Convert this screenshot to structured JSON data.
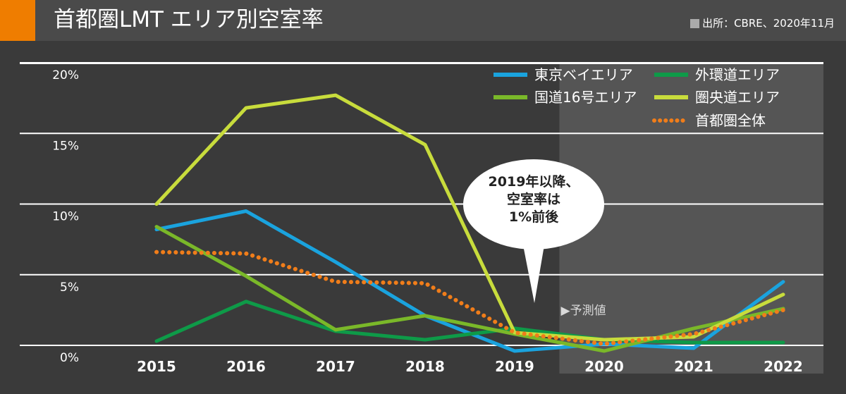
{
  "header": {
    "title": "首都圏LMT エリア別空室率",
    "source": "出所：CBRE、2020年11月"
  },
  "colors": {
    "accent": "#ef7d00",
    "background": "#3a3a3a",
    "forecast_shade": "#555555"
  },
  "chart_data": {
    "type": "line",
    "title": "首都圏LMT エリア別空室率",
    "xlabel": "",
    "ylabel": "",
    "x": [
      "2015",
      "2016",
      "2017",
      "2018",
      "2019",
      "2020",
      "2021",
      "2022"
    ],
    "y_ticks": [
      "0%",
      "5%",
      "10%",
      "15%",
      "20%"
    ],
    "ylim": [
      0,
      20
    ],
    "grid": true,
    "legend_position": "top-right",
    "forecast_label": "▶予測値",
    "forecast_from": "2019.5",
    "callout": [
      "2019年以降、",
      "空室率は",
      "1%前後"
    ],
    "series": [
      {
        "name": "東京ベイエリア",
        "color": "#1aa3de",
        "style": "solid",
        "x": [
          2015,
          2016,
          2017,
          2018,
          2019,
          2020,
          2021,
          2022
        ],
        "values": [
          8.6,
          9.9,
          6.3,
          2.5,
          0.0,
          0.5,
          0.2,
          4.9
        ]
      },
      {
        "name": "外環道エリア",
        "color": "#0e9a48",
        "style": "solid",
        "x": [
          2015,
          2016,
          2017,
          2018,
          2019,
          2020,
          2021,
          2022
        ],
        "values": [
          0.7,
          3.5,
          1.4,
          0.8,
          1.6,
          0.8,
          0.6,
          0.6
        ]
      },
      {
        "name": "国道16号エリア",
        "color": "#7ab829",
        "style": "solid",
        "x": [
          2015,
          2016,
          2017,
          2018,
          2019,
          2020,
          2021,
          2022
        ],
        "values": [
          8.8,
          5.3,
          1.5,
          2.5,
          1.2,
          0.0,
          1.6,
          3.0
        ]
      },
      {
        "name": "圏央道エリア",
        "color": "#c8dc3c",
        "style": "solid",
        "x": [
          2015,
          2016,
          2017,
          2018,
          2019,
          2020,
          2021,
          2022
        ],
        "values": [
          10.4,
          17.2,
          18.1,
          14.6,
          1.3,
          0.8,
          1.0,
          4.0
        ]
      },
      {
        "name": "首都圏全体",
        "color": "#f07d1a",
        "style": "dotted",
        "x": [
          2015,
          2016,
          2017,
          2018,
          2019,
          2019.5,
          2020,
          2021,
          2022
        ],
        "values": [
          7.0,
          6.9,
          4.9,
          4.8,
          1.3,
          0.9,
          0.5,
          1.2,
          2.9
        ]
      }
    ]
  }
}
